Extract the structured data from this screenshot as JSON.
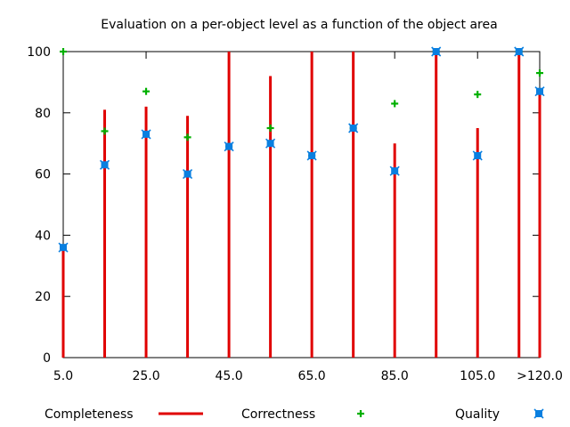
{
  "chart_data": {
    "type": "line",
    "title": "Evaluation on a per-object level as a function of the object area",
    "xlabel": "",
    "ylabel": "",
    "ylim": [
      0,
      100
    ],
    "yticks": [
      0,
      20,
      40,
      60,
      80,
      100
    ],
    "x": [
      5,
      15,
      25,
      35,
      45,
      55,
      65,
      75,
      85,
      95,
      105,
      115,
      120
    ],
    "xlim": [
      5,
      120
    ],
    "xticks": [
      {
        "value": 5,
        "label": "5.0"
      },
      {
        "value": 25,
        "label": "25.0"
      },
      {
        "value": 45,
        "label": "45.0"
      },
      {
        "value": 65,
        "label": "65.0"
      },
      {
        "value": 85,
        "label": "85.0"
      },
      {
        "value": 105,
        "label": "105.0"
      },
      {
        "value": 120,
        "label": ">120.0"
      }
    ],
    "series": [
      {
        "name": "Completeness",
        "style": "impulses",
        "color": "#e00000",
        "values": [
          36,
          81,
          82,
          79,
          100,
          92,
          100,
          100,
          70,
          100,
          75,
          100,
          88
        ]
      },
      {
        "name": "Correctness",
        "style": "plus",
        "color": "#00b000",
        "values": [
          100,
          74,
          87,
          72,
          69,
          75,
          66,
          75,
          83,
          100,
          86,
          100,
          93
        ]
      },
      {
        "name": "Quality",
        "style": "cross-box",
        "color": "#0a7fe0",
        "values": [
          36,
          63,
          73,
          60,
          69,
          70,
          66,
          75,
          61,
          100,
          66,
          100,
          87
        ]
      }
    ],
    "legend": "bottom",
    "grid": false
  }
}
